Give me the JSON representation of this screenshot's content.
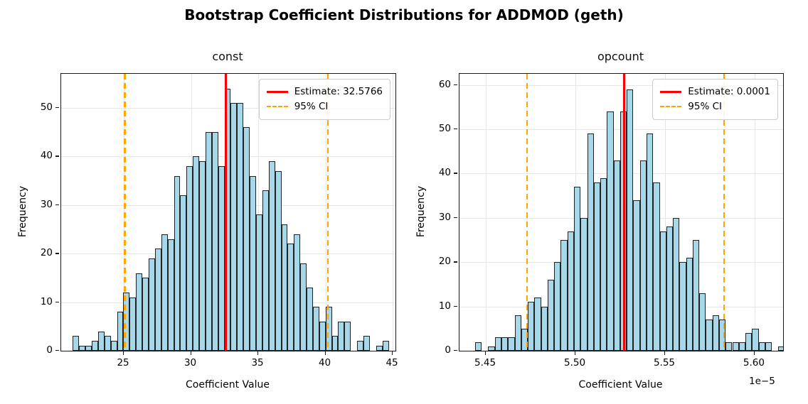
{
  "title": "Bootstrap Coefficient Distributions for ADDMOD (geth)",
  "colors": {
    "bar_fill": "#a6d8ea",
    "bar_edge": "#222222",
    "estimate_line": "#ff0000",
    "ci_line": "#ffa500",
    "grid": "#e7e7e7"
  },
  "chart_data": [
    {
      "type": "histogram",
      "title": "const",
      "xlabel": "Coefficient Value",
      "ylabel": "Frequency",
      "xlim": [
        20.34,
        45.21
      ],
      "ylim": [
        0,
        57
      ],
      "xticks": [
        [
          25,
          "25"
        ],
        [
          30,
          "30"
        ],
        [
          35,
          "35"
        ],
        [
          40,
          "40"
        ],
        [
          45,
          "45"
        ]
      ],
      "yticks": [
        0,
        10,
        20,
        30,
        40,
        50
      ],
      "bin_start": 21.21,
      "bin_width": 0.47,
      "counts": [
        3,
        1,
        1,
        2,
        4,
        3,
        2,
        8,
        12,
        11,
        16,
        15,
        19,
        21,
        24,
        23,
        36,
        32,
        38,
        40,
        39,
        45,
        45,
        38,
        54,
        51,
        51,
        46,
        36,
        28,
        33,
        39,
        37,
        26,
        22,
        24,
        18,
        13,
        9,
        6,
        9,
        3,
        6,
        6,
        0,
        2,
        3,
        0,
        1,
        2
      ],
      "estimate": 32.5766,
      "ci": [
        25.08,
        40.18
      ],
      "legend": [
        "Estimate: 32.5766",
        "95% CI"
      ],
      "grid": true,
      "legend_position": "upper right"
    },
    {
      "type": "histogram",
      "title": "opcount",
      "xlabel": "Coefficient Value",
      "ylabel": "Frequency",
      "offset_label": "1e−5",
      "x_scale_note": "values in units of 1e-5",
      "xlim": [
        5.4353,
        5.6159
      ],
      "ylim": [
        0,
        62.5
      ],
      "xticks": [
        [
          5.45,
          "5.45"
        ],
        [
          5.5,
          "5.50"
        ],
        [
          5.55,
          "5.55"
        ],
        [
          5.6,
          "5.60"
        ]
      ],
      "yticks": [
        0,
        10,
        20,
        30,
        40,
        50,
        60
      ],
      "bin_start": 5.444,
      "bin_width": 0.00368,
      "counts": [
        2,
        0,
        1,
        3,
        3,
        3,
        8,
        5,
        11,
        12,
        10,
        16,
        20,
        25,
        27,
        37,
        30,
        49,
        38,
        39,
        54,
        43,
        54,
        59,
        34,
        43,
        49,
        38,
        27,
        28,
        30,
        20,
        21,
        25,
        13,
        7,
        8,
        7,
        2,
        2,
        2,
        4,
        5,
        2,
        2,
        0,
        1
      ],
      "estimate": 5.527,
      "ci": [
        5.473,
        5.583
      ],
      "legend": [
        "Estimate: 0.0001",
        "95% CI"
      ],
      "grid": true,
      "legend_position": "upper right"
    }
  ]
}
